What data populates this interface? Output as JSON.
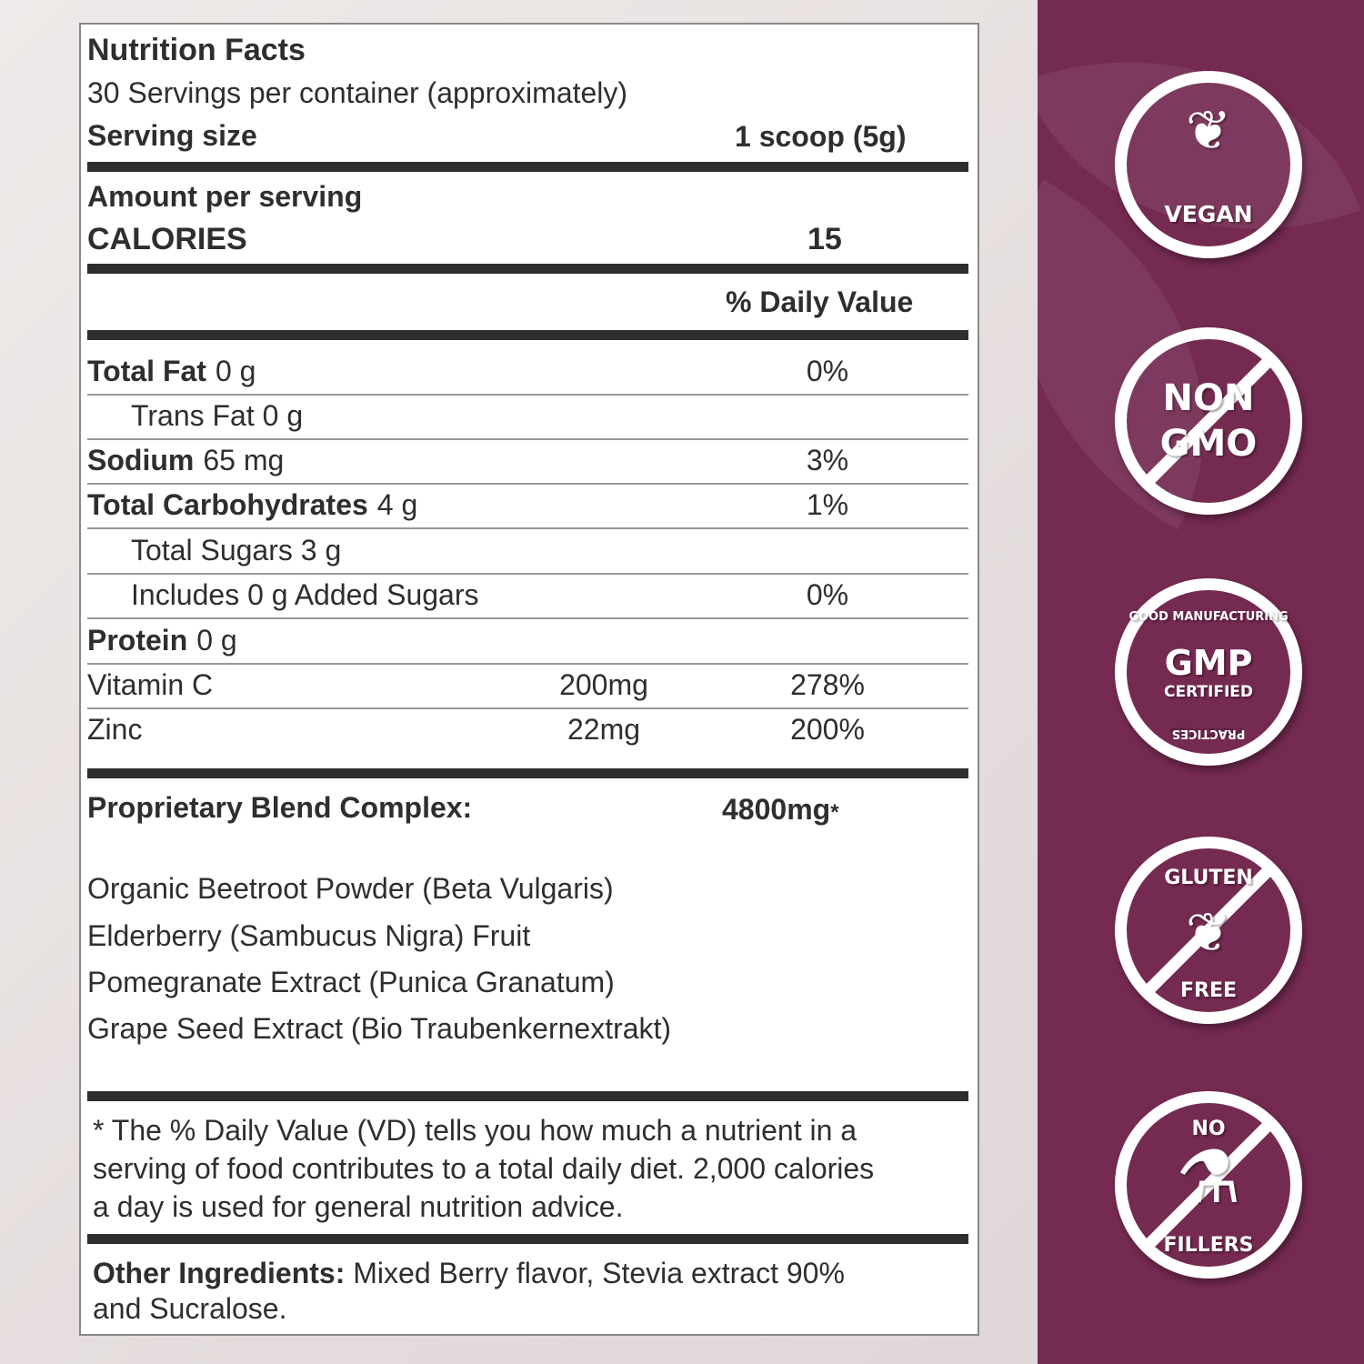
{
  "label": {
    "title": "Nutrition Facts",
    "servings": "30 Servings per container (approximately)",
    "serving_size_label": "Serving size",
    "serving_size_value": "1 scoop (5g)",
    "amount_per_serving": "Amount per serving",
    "calories_label": "CALORIES",
    "calories_value": "15",
    "daily_value_header": "% Daily Value",
    "nutrients": [
      {
        "name": "Total Fat",
        "amount": "0 g",
        "dv": "0%"
      },
      {
        "name": "Trans Fat 0 g",
        "amount": "",
        "dv": ""
      },
      {
        "name": "Sodium",
        "amount": "65 mg",
        "dv": "3%"
      },
      {
        "name": "Total Carbohydrates",
        "amount": "4 g",
        "dv": "1%"
      },
      {
        "name": "Total Sugars 3 g",
        "amount": "",
        "dv": ""
      },
      {
        "name": "Includes 0 g  Added Sugars",
        "amount": "",
        "dv": "0%"
      },
      {
        "name": "Protein",
        "amount": "0 g",
        "dv": ""
      },
      {
        "name": "Vitamin C",
        "amount": "200mg",
        "dv": "278%"
      },
      {
        "name": "Zinc",
        "amount": "22mg",
        "dv": "200%"
      }
    ],
    "blend_label": "Proprietary Blend Complex:",
    "blend_amount": "4800mg",
    "blend_asterisk": "*",
    "blend_ingredients": [
      "Organic Beetroot Powder (Beta Vulgaris)",
      "Elderberry (Sambucus Nigra) Fruit",
      "Pomegranate Extract (Punica Granatum)",
      "Grape Seed Extract (Bio Traubenkernextrakt)"
    ],
    "footnote": [
      "* The % Daily Value (VD) tells you how much a nutrient in a",
      "serving of food contributes to a total daily diet. 2,000 calories",
      "a day is used for general nutrition advice."
    ],
    "other_ingredients_label": "Other Ingredients:",
    "other_ingredients_line1": " Mixed Berry flavor, Stevia extract 90%",
    "other_ingredients_line2": "and Sucralose."
  },
  "badges": {
    "vegan": "VEGAN",
    "non": "NON",
    "gmo": "GMO",
    "gmp_top": "GOOD MANUFACTURING",
    "gmp": "GMP",
    "gmp_certified": "CERTIFIED",
    "gmp_bottom": "PRACTICES",
    "gluten": "GLUTEN",
    "free": "FREE",
    "no": "NO",
    "fillers": "FILLERS"
  },
  "colors": {
    "panel": "#752a52",
    "text": "#2e2e2e"
  }
}
